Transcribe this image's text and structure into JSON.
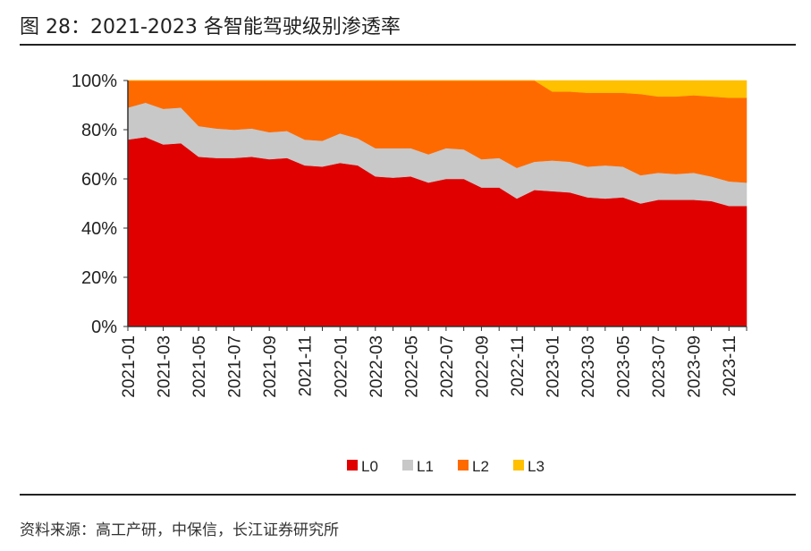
{
  "title": "图 28：2021-2023 各智能驾驶级别渗透率",
  "source": "资料来源：高工产研，中保信，长江证券研究所",
  "chart_data": {
    "type": "area",
    "stacked": true,
    "title": "图 28：2021-2023 各智能驾驶级别渗透率",
    "xlabel": "",
    "ylabel": "",
    "ylim": [
      0,
      100
    ],
    "yticks": [
      "0%",
      "20%",
      "40%",
      "60%",
      "80%",
      "100%"
    ],
    "grid": false,
    "legend_position": "bottom",
    "categories": [
      "2021-01",
      "2021-02",
      "2021-03",
      "2021-04",
      "2021-05",
      "2021-06",
      "2021-07",
      "2021-08",
      "2021-09",
      "2021-10",
      "2021-11",
      "2021-12",
      "2022-01",
      "2022-02",
      "2022-03",
      "2022-04",
      "2022-05",
      "2022-06",
      "2022-07",
      "2022-08",
      "2022-09",
      "2022-10",
      "2022-11",
      "2022-12",
      "2023-01",
      "2023-02",
      "2023-03",
      "2023-04",
      "2023-05",
      "2023-06",
      "2023-07",
      "2023-08",
      "2023-09",
      "2023-10",
      "2023-11",
      "2023-12"
    ],
    "xtick_labels": [
      "2021-01",
      "2021-03",
      "2021-05",
      "2021-07",
      "2021-09",
      "2021-11",
      "2022-01",
      "2022-03",
      "2022-05",
      "2022-07",
      "2022-09",
      "2022-11",
      "2023-01",
      "2023-03",
      "2023-05",
      "2023-07",
      "2023-09",
      "2023-11"
    ],
    "series": [
      {
        "name": "L0",
        "color": "#e00000",
        "values": [
          76,
          77,
          74,
          74.5,
          69,
          68.5,
          68.5,
          69,
          68,
          68.5,
          65.5,
          65,
          66.5,
          65.5,
          61,
          60.5,
          61,
          58.5,
          60,
          60,
          56.5,
          56.5,
          52,
          55.5,
          55,
          54.5,
          52.5,
          52,
          52.5,
          50,
          51.5,
          51.5,
          51.5,
          51,
          49,
          49
        ]
      },
      {
        "name": "L1",
        "color": "#c8c8c8",
        "values": [
          13,
          14,
          14.5,
          14.5,
          12.5,
          12,
          11.5,
          11.5,
          11,
          11,
          10.5,
          10.5,
          12,
          11,
          11.5,
          12,
          11.5,
          11.5,
          12.5,
          12,
          11.5,
          12,
          12.5,
          11.5,
          12.5,
          12.5,
          12.5,
          13.5,
          12.5,
          11.5,
          11,
          10.5,
          11,
          10,
          10,
          9.5
        ]
      },
      {
        "name": "L2",
        "color": "#ff6a00",
        "values": [
          11,
          9,
          11.5,
          11,
          18.5,
          19.5,
          20,
          19.5,
          21,
          20.5,
          24,
          24.5,
          21.5,
          23.5,
          27.5,
          27.5,
          27.5,
          30,
          27.5,
          28,
          32,
          31.5,
          35.5,
          33,
          28,
          28.5,
          30,
          29.5,
          30,
          33,
          31,
          31.5,
          31.5,
          32.5,
          34,
          34.5
        ]
      },
      {
        "name": "L3",
        "color": "#ffc000",
        "values": [
          0,
          0,
          0,
          0,
          0,
          0,
          0,
          0,
          0,
          0,
          0,
          0,
          0,
          0,
          0,
          0,
          0,
          0,
          0,
          0,
          0,
          0,
          0,
          0,
          4.5,
          4.5,
          5,
          5,
          5,
          5.5,
          6.5,
          6.5,
          6,
          6.5,
          7,
          7
        ]
      }
    ]
  }
}
